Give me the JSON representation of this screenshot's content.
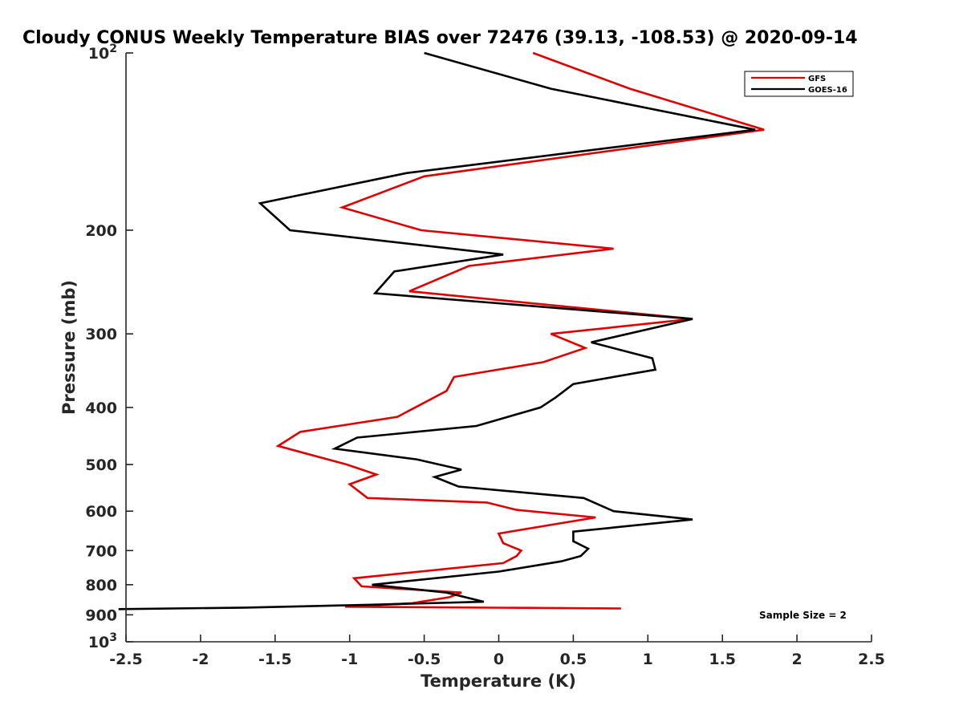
{
  "chart_data": {
    "type": "line",
    "title": "Cloudy CONUS Weekly Temperature BIAS over 72476 (39.13, -108.53) @ 2020-09-14",
    "xlabel": "Temperature (K)",
    "ylabel": "Pressure (mb)",
    "xlim": [
      -2.5,
      2.5
    ],
    "ylim": [
      1000,
      100
    ],
    "y_scale": "log",
    "y_reversed": true,
    "grid": false,
    "legend_position": "top-right",
    "x_ticks": [
      "-2.5",
      "-2",
      "-1.5",
      "-1",
      "-0.5",
      "0",
      "0.5",
      "1",
      "1.5",
      "2",
      "2.5"
    ],
    "y_ticks": [
      {
        "value": 100,
        "base": "10",
        "exp": "2"
      },
      {
        "value": 200,
        "label": "200"
      },
      {
        "value": 300,
        "label": "300"
      },
      {
        "value": 400,
        "label": "400"
      },
      {
        "value": 500,
        "label": "500"
      },
      {
        "value": 600,
        "label": "600"
      },
      {
        "value": 700,
        "label": "700"
      },
      {
        "value": 800,
        "label": "800"
      },
      {
        "value": 900,
        "label": "900"
      },
      {
        "value": 1000,
        "base": "10",
        "exp": "3"
      }
    ],
    "annotation": "Sample Size = 2",
    "series": [
      {
        "name": "GFS",
        "color": "#e00000",
        "points": [
          [
            0.23,
            100
          ],
          [
            0.88,
            115
          ],
          [
            1.78,
            135
          ],
          [
            -0.5,
            162
          ],
          [
            -1.05,
            183
          ],
          [
            -0.52,
            200
          ],
          [
            0.77,
            215
          ],
          [
            -0.2,
            230
          ],
          [
            -0.6,
            254
          ],
          [
            1.3,
            283
          ],
          [
            0.35,
            300
          ],
          [
            0.58,
            317
          ],
          [
            0.3,
            335
          ],
          [
            -0.3,
            355
          ],
          [
            -0.35,
            375
          ],
          [
            -0.68,
            415
          ],
          [
            -1.33,
            440
          ],
          [
            -1.48,
            465
          ],
          [
            -1.02,
            500
          ],
          [
            -0.82,
            520
          ],
          [
            -1.0,
            540
          ],
          [
            -0.88,
            570
          ],
          [
            -0.08,
            580
          ],
          [
            0.12,
            597
          ],
          [
            0.65,
            615
          ],
          [
            0.0,
            655
          ],
          [
            0.03,
            680
          ],
          [
            0.15,
            700
          ],
          [
            0.12,
            715
          ],
          [
            0.03,
            735
          ],
          [
            -0.97,
            780
          ],
          [
            -0.92,
            805
          ],
          [
            -0.25,
            825
          ],
          [
            -0.33,
            840
          ],
          [
            -0.58,
            860
          ],
          [
            -1.03,
            872
          ],
          [
            0.82,
            878
          ]
        ]
      },
      {
        "name": "GOES-16",
        "color": "#000000",
        "points": [
          [
            -0.5,
            100
          ],
          [
            0.35,
            115
          ],
          [
            1.72,
            135
          ],
          [
            -0.62,
            160
          ],
          [
            -1.6,
            180
          ],
          [
            -1.4,
            200
          ],
          [
            0.03,
            220
          ],
          [
            -0.7,
            235
          ],
          [
            -0.83,
            256
          ],
          [
            1.3,
            283
          ],
          [
            0.62,
            310
          ],
          [
            1.03,
            330
          ],
          [
            1.05,
            345
          ],
          [
            0.5,
            365
          ],
          [
            0.38,
            385
          ],
          [
            0.28,
            400
          ],
          [
            -0.15,
            430
          ],
          [
            -0.95,
            450
          ],
          [
            -1.1,
            470
          ],
          [
            -0.55,
            490
          ],
          [
            -0.25,
            510
          ],
          [
            -0.43,
            525
          ],
          [
            -0.27,
            545
          ],
          [
            0.57,
            570
          ],
          [
            0.77,
            600
          ],
          [
            1.3,
            620
          ],
          [
            0.5,
            650
          ],
          [
            0.5,
            675
          ],
          [
            0.6,
            695
          ],
          [
            0.55,
            715
          ],
          [
            0.42,
            730
          ],
          [
            0.0,
            760
          ],
          [
            -0.85,
            800
          ],
          [
            -0.35,
            825
          ],
          [
            -0.1,
            855
          ],
          [
            -0.85,
            865
          ],
          [
            -1.7,
            875
          ],
          [
            -2.55,
            880
          ]
        ]
      }
    ]
  }
}
